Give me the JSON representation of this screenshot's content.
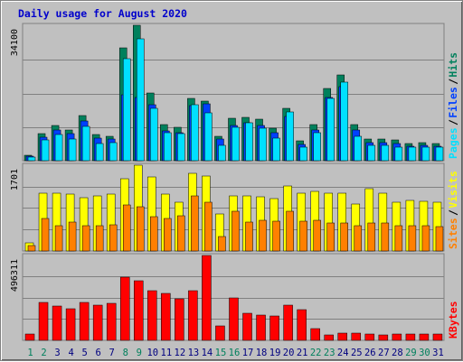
{
  "title": "Daily usage for August 2020",
  "colors": {
    "background": "#c0c0c0",
    "hits_back": "#00805c",
    "files": "#0040ff",
    "pages": "#00e0ff",
    "visits": "#ffff00",
    "sites": "#ff8000",
    "kbytes": "#ff0000",
    "weekend_day": "#00805c",
    "weekday": "#000080",
    "title": "#0000cc"
  },
  "chart_data": [
    {
      "type": "bar",
      "panel": "hits-files-pages",
      "max_label": "34100",
      "legend": [
        {
          "name": "Pages",
          "color": "#00e0ff"
        },
        {
          "name": "Files",
          "color": "#0040ff"
        },
        {
          "name": "Hits",
          "color": "#00805c"
        }
      ],
      "legend_separator": "/",
      "ylim": [
        0,
        34100
      ],
      "categories": [
        "1",
        "2",
        "3",
        "4",
        "5",
        "6",
        "7",
        "8",
        "9",
        "10",
        "11",
        "12",
        "13",
        "14",
        "15",
        "16",
        "17",
        "18",
        "19",
        "20",
        "21",
        "22",
        "23",
        "24",
        "25",
        "26",
        "27",
        "28",
        "29",
        "30",
        "31"
      ],
      "series": [
        {
          "name": "Hits",
          "values": [
            1400,
            6800,
            8800,
            7800,
            11300,
            6500,
            6200,
            28500,
            34100,
            17100,
            9200,
            8500,
            15600,
            15100,
            6200,
            10600,
            10800,
            10500,
            8200,
            13200,
            4900,
            9000,
            18100,
            21500,
            9000,
            5500,
            5500,
            5200,
            4400,
            4600,
            4400
          ]
        },
        {
          "name": "Files",
          "values": [
            1100,
            6000,
            7800,
            6800,
            9900,
            5700,
            5500,
            16700,
            15800,
            14100,
            7400,
            7100,
            13900,
            14400,
            5400,
            8900,
            9600,
            8900,
            7000,
            11200,
            4000,
            7800,
            16000,
            18600,
            7800,
            4600,
            4600,
            4300,
            3600,
            3800,
            3600
          ]
        },
        {
          "name": "Pages",
          "values": [
            900,
            5200,
            6500,
            5400,
            8700,
            4300,
            4500,
            25600,
            30800,
            13200,
            7000,
            6900,
            14000,
            12000,
            3900,
            8300,
            9600,
            8200,
            5600,
            12300,
            3300,
            7000,
            15700,
            19700,
            6200,
            3800,
            3800,
            3500,
            3300,
            3400,
            3300
          ]
        }
      ]
    },
    {
      "type": "bar",
      "panel": "visits-sites",
      "max_label": "1701",
      "legend": [
        {
          "name": "Sites",
          "color": "#ff8000"
        },
        {
          "name": "Visits",
          "color": "#ffff00"
        }
      ],
      "legend_separator": "/",
      "ylim": [
        0,
        1701
      ],
      "categories": [
        "1",
        "2",
        "3",
        "4",
        "5",
        "6",
        "7",
        "8",
        "9",
        "10",
        "11",
        "12",
        "13",
        "14",
        "15",
        "16",
        "17",
        "18",
        "19",
        "20",
        "21",
        "22",
        "23",
        "24",
        "25",
        "26",
        "27",
        "28",
        "29",
        "30",
        "31"
      ],
      "series": [
        {
          "name": "Visits",
          "values": [
            160,
            1150,
            1150,
            1120,
            1060,
            1100,
            1120,
            1440,
            1701,
            1460,
            1130,
            960,
            1540,
            1480,
            730,
            1090,
            1100,
            1080,
            1040,
            1290,
            1140,
            1180,
            1140,
            1140,
            940,
            1230,
            1150,
            960,
            1000,
            980,
            960
          ]
        },
        {
          "name": "Sites",
          "values": [
            110,
            640,
            510,
            570,
            510,
            510,
            520,
            910,
            880,
            680,
            640,
            690,
            1100,
            960,
            280,
            780,
            580,
            600,
            590,
            790,
            590,
            610,
            560,
            560,
            500,
            560,
            560,
            500,
            500,
            500,
            480
          ]
        }
      ]
    },
    {
      "type": "bar",
      "panel": "kbytes",
      "max_label": "496311",
      "legend": [
        {
          "name": "KBytes",
          "color": "#ff0000"
        }
      ],
      "ylim": [
        0,
        496311
      ],
      "categories": [
        "1",
        "2",
        "3",
        "4",
        "5",
        "6",
        "7",
        "8",
        "9",
        "10",
        "11",
        "12",
        "13",
        "14",
        "15",
        "16",
        "17",
        "18",
        "19",
        "20",
        "21",
        "22",
        "23",
        "24",
        "25",
        "26",
        "27",
        "28",
        "29",
        "30",
        "31"
      ],
      "series": [
        {
          "name": "KBytes",
          "values": [
            38000,
            221000,
            203000,
            183000,
            221000,
            208000,
            215000,
            368000,
            349000,
            293000,
            275000,
            243000,
            290000,
            496311,
            85000,
            250000,
            157000,
            149000,
            141000,
            204000,
            182000,
            71000,
            31000,
            43000,
            43000,
            37000,
            31000,
            37000,
            37000,
            38000,
            37000
          ]
        }
      ]
    }
  ]
}
